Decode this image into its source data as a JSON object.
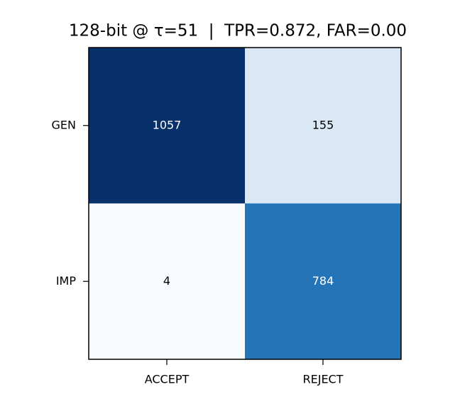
{
  "chart_data": {
    "type": "heatmap",
    "title": "128-bit @ τ=51  |  TPR=0.872, FAR=0.00",
    "x_categories": [
      "ACCEPT",
      "REJECT"
    ],
    "y_categories": [
      "GEN",
      "IMP"
    ],
    "values": [
      [
        1057,
        155
      ],
      [
        4,
        784
      ]
    ],
    "cell_colors": [
      [
        "#08306b",
        "#dae8f5"
      ],
      [
        "#f7fbff",
        "#2474b7"
      ]
    ]
  }
}
